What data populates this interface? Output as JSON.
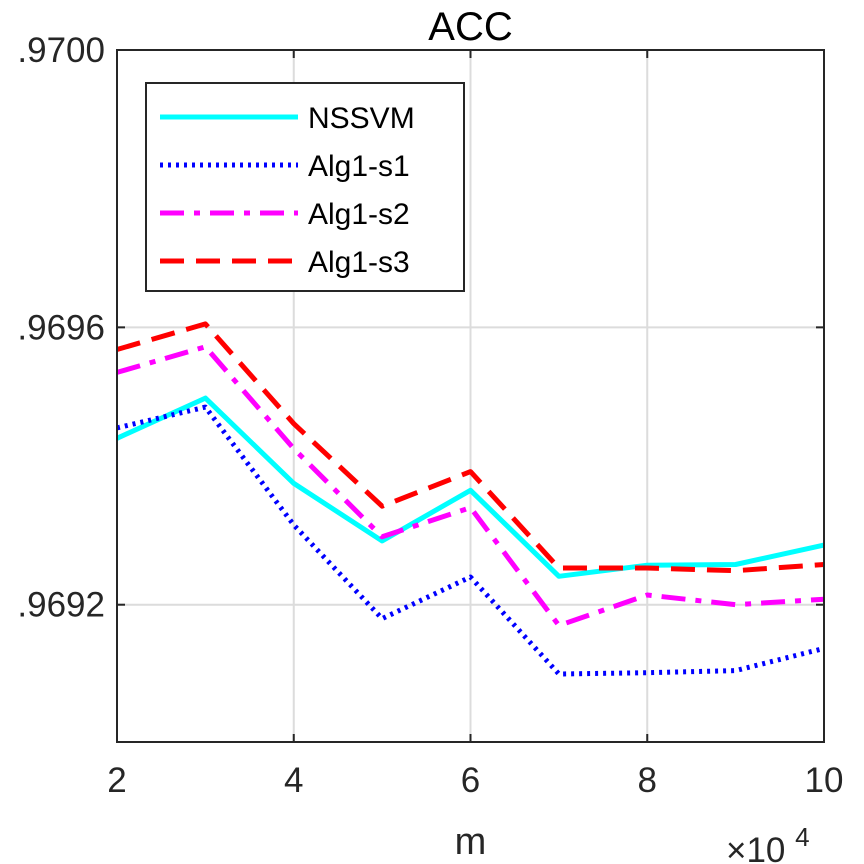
{
  "chart_data": {
    "type": "line",
    "title": "ACC",
    "xlabel": "m",
    "x_exponent_label": "×10",
    "x_exponent_power": "4",
    "ylabel": "",
    "x": [
      2,
      3,
      4,
      5,
      6,
      7,
      8,
      9,
      10
    ],
    "xlim": [
      2,
      10
    ],
    "ylim": [
      0.969002,
      0.97
    ],
    "xticks": [
      2,
      4,
      6,
      8,
      10
    ],
    "xtick_labels": [
      "2",
      "4",
      "6",
      "8",
      "10"
    ],
    "yticks": [
      0.97,
      0.9696,
      0.9692
    ],
    "ytick_labels": [
      ".9700",
      ".9696",
      ".9692"
    ],
    "grid": true,
    "legend_position": "top-left",
    "series": [
      {
        "name": "NSSVM",
        "color": "#00FFFF",
        "style": "solid",
        "values": [
          0.96944,
          0.969498,
          0.969375,
          0.969292,
          0.969365,
          0.969241,
          0.969257,
          0.969258,
          0.969286
        ]
      },
      {
        "name": "Alg1-s1",
        "color": "#0000FF",
        "style": "dotted",
        "values": [
          0.969455,
          0.969485,
          0.969315,
          0.96918,
          0.96924,
          0.9691,
          0.969102,
          0.969105,
          0.969137
        ]
      },
      {
        "name": "Alg1-s2",
        "color": "#FF00FF",
        "style": "dashdot",
        "values": [
          0.969535,
          0.969572,
          0.969425,
          0.969298,
          0.96934,
          0.96917,
          0.969214,
          0.9692,
          0.969208
        ]
      },
      {
        "name": "Alg1-s3",
        "color": "#FF0000",
        "style": "dashed",
        "values": [
          0.969568,
          0.969605,
          0.969461,
          0.969342,
          0.969392,
          0.969253,
          0.969253,
          0.969249,
          0.969258
        ]
      }
    ]
  }
}
